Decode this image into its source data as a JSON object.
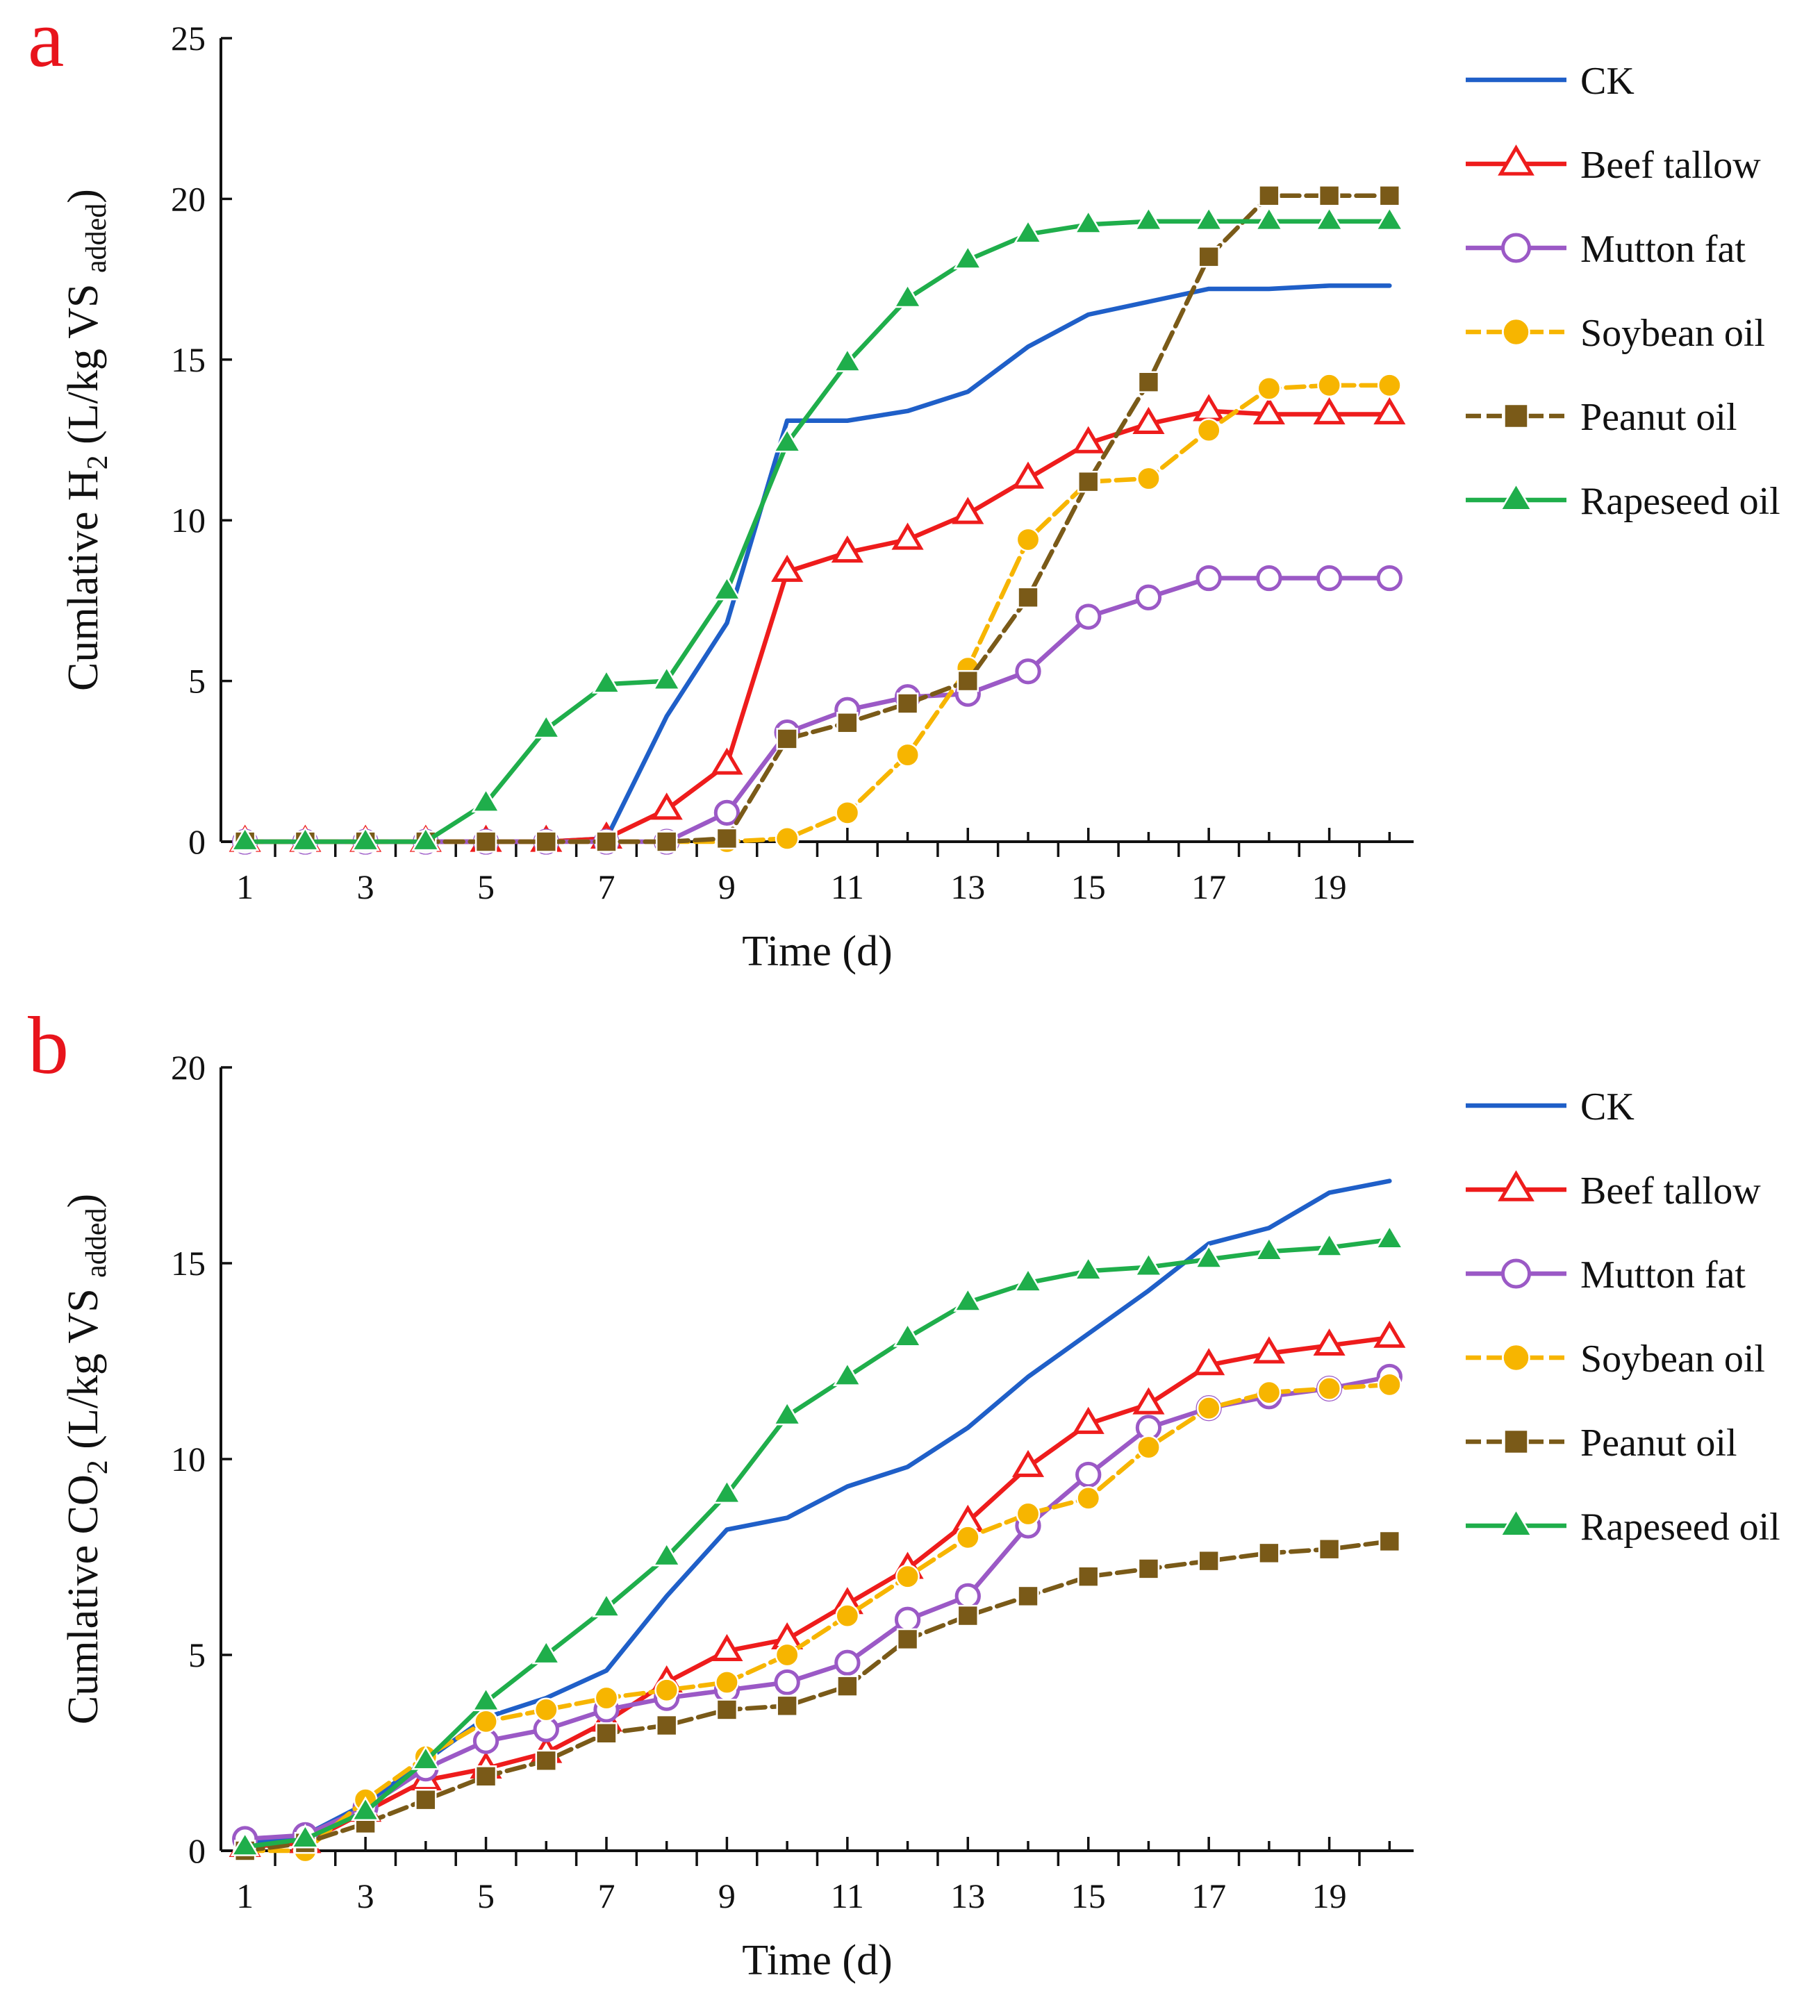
{
  "chart_data": [
    {
      "type": "line",
      "panel_label": "a",
      "ylabel_parts": {
        "main": "Cumlative H",
        "sub1": "2",
        "mid": " (L/kg VS ",
        "sub2": "added",
        "end": ")"
      },
      "xlabel": "Time (d)",
      "ylim": [
        0,
        25
      ],
      "yticks": [
        0,
        5,
        10,
        15,
        20,
        25
      ],
      "xlim": [
        0.6,
        20.4
      ],
      "xticks_labeled": [
        1,
        3,
        5,
        7,
        9,
        11,
        13,
        15,
        17,
        19
      ],
      "x": [
        1,
        2,
        3,
        4,
        5,
        6,
        7,
        8,
        9,
        10,
        11,
        12,
        13,
        14,
        15,
        16,
        17,
        18,
        19,
        20
      ],
      "grid": false,
      "legend_position": "right",
      "series": [
        {
          "name": "CK",
          "color": "#1f5fc8",
          "marker": "none",
          "dash": "solid",
          "values": [
            0,
            0,
            0,
            0,
            0,
            0,
            0.1,
            3.9,
            6.8,
            13.1,
            13.1,
            13.4,
            14.0,
            15.4,
            16.4,
            16.8,
            17.2,
            17.2,
            17.3,
            17.3
          ]
        },
        {
          "name": "Beef tallow",
          "color": "#ee1c1c",
          "marker": "triangle-open",
          "dash": "solid",
          "values": [
            0,
            0,
            0,
            0,
            0,
            0,
            0.1,
            1.0,
            2.4,
            8.4,
            9.0,
            9.4,
            10.2,
            11.3,
            12.4,
            13.0,
            13.4,
            13.3,
            13.3,
            13.3
          ]
        },
        {
          "name": "Mutton fat",
          "color": "#9b59c6",
          "marker": "circle-open",
          "dash": "solid",
          "values": [
            0,
            0,
            0,
            0,
            0,
            0,
            0,
            0,
            0.9,
            3.4,
            4.1,
            4.5,
            4.6,
            5.3,
            7.0,
            7.6,
            8.2,
            8.2,
            8.2,
            8.2
          ]
        },
        {
          "name": "Soybean oil",
          "color": "#f7b500",
          "marker": "circle-filled",
          "dash": "dashed",
          "values": [
            0,
            0,
            0,
            0,
            0,
            0,
            0,
            0,
            0,
            0.1,
            0.9,
            2.7,
            5.4,
            9.4,
            11.2,
            11.3,
            12.8,
            14.1,
            14.2,
            14.2
          ]
        },
        {
          "name": "Peanut oil",
          "color": "#7a5a18",
          "marker": "square-filled",
          "dash": "dashed",
          "values": [
            0,
            0,
            0,
            0,
            0,
            0,
            0,
            0,
            0.1,
            3.2,
            3.7,
            4.3,
            5.0,
            7.6,
            11.2,
            14.3,
            18.2,
            20.1,
            20.1,
            20.1
          ]
        },
        {
          "name": "Rapeseed oil",
          "color": "#1fae4b",
          "marker": "triangle-filled",
          "dash": "solid",
          "values": [
            0,
            0,
            0,
            0,
            1.2,
            3.5,
            4.9,
            5.0,
            7.8,
            12.4,
            14.9,
            16.9,
            18.1,
            18.9,
            19.2,
            19.3,
            19.3,
            19.3,
            19.3,
            19.3
          ]
        }
      ]
    },
    {
      "type": "line",
      "panel_label": "b",
      "ylabel_parts": {
        "main": "Cumlative CO",
        "sub1": "2",
        "mid": " (L/kg VS ",
        "sub2": "added",
        "end": ")"
      },
      "xlabel": "Time (d)",
      "ylim": [
        0,
        20
      ],
      "yticks": [
        0,
        5,
        10,
        15,
        20
      ],
      "xlim": [
        0.6,
        20.4
      ],
      "xticks_labeled": [
        1,
        3,
        5,
        7,
        9,
        11,
        13,
        15,
        17,
        19
      ],
      "x": [
        1,
        2,
        3,
        4,
        5,
        6,
        7,
        8,
        9,
        10,
        11,
        12,
        13,
        14,
        15,
        16,
        17,
        18,
        19,
        20
      ],
      "grid": false,
      "legend_position": "right",
      "series": [
        {
          "name": "CK",
          "color": "#1f5fc8",
          "marker": "none",
          "dash": "solid",
          "values": [
            0.2,
            0.4,
            1.2,
            2.3,
            3.4,
            3.9,
            4.6,
            6.5,
            8.2,
            8.5,
            9.3,
            9.8,
            10.8,
            12.1,
            13.2,
            14.3,
            15.5,
            15.9,
            16.8,
            17.1
          ]
        },
        {
          "name": "Beef tallow",
          "color": "#ee1c1c",
          "marker": "triangle-open",
          "dash": "solid",
          "values": [
            0.1,
            0.2,
            1.0,
            1.8,
            2.1,
            2.5,
            3.3,
            4.3,
            5.1,
            5.4,
            6.3,
            7.2,
            8.4,
            9.8,
            10.9,
            11.4,
            12.4,
            12.7,
            12.9,
            13.1
          ]
        },
        {
          "name": "Mutton fat",
          "color": "#9b59c6",
          "marker": "circle-open",
          "dash": "solid",
          "values": [
            0.3,
            0.4,
            1.1,
            2.1,
            2.8,
            3.1,
            3.6,
            3.9,
            4.1,
            4.3,
            4.8,
            5.9,
            6.5,
            8.3,
            9.6,
            10.8,
            11.3,
            11.6,
            11.8,
            12.1
          ]
        },
        {
          "name": "Soybean oil",
          "color": "#f7b500",
          "marker": "circle-filled",
          "dash": "dashed",
          "values": [
            0,
            0,
            1.3,
            2.4,
            3.3,
            3.6,
            3.9,
            4.1,
            4.3,
            5.0,
            6.0,
            7.0,
            8.0,
            8.6,
            9.0,
            10.3,
            11.3,
            11.7,
            11.8,
            11.9
          ]
        },
        {
          "name": "Peanut oil",
          "color": "#7a5a18",
          "marker": "square-filled",
          "dash": "dashed",
          "values": [
            0,
            0.2,
            0.7,
            1.3,
            1.9,
            2.3,
            3.0,
            3.2,
            3.6,
            3.7,
            4.2,
            5.4,
            6.0,
            6.5,
            7.0,
            7.2,
            7.4,
            7.6,
            7.7,
            7.9
          ]
        },
        {
          "name": "Rapeseed oil",
          "color": "#1fae4b",
          "marker": "triangle-filled",
          "dash": "solid",
          "values": [
            0.1,
            0.3,
            1.0,
            2.3,
            3.8,
            5.0,
            6.2,
            7.5,
            9.1,
            11.1,
            12.1,
            13.1,
            14.0,
            14.5,
            14.8,
            14.9,
            15.1,
            15.3,
            15.4,
            15.6
          ]
        }
      ]
    }
  ]
}
